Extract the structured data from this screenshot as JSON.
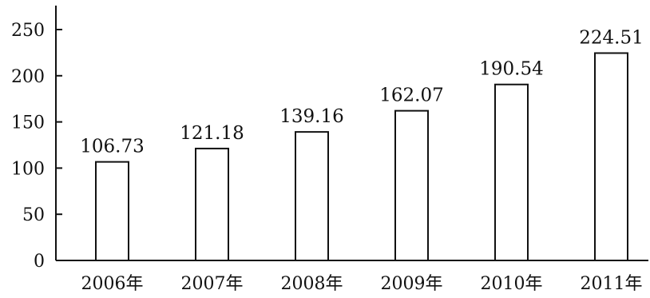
{
  "chart_data": {
    "type": "bar",
    "categories": [
      "2006年",
      "2007年",
      "2008年",
      "2009年",
      "2010年",
      "2011年"
    ],
    "values": [
      106.73,
      121.18,
      139.16,
      162.07,
      190.54,
      224.51
    ],
    "data_labels": [
      "106.73",
      "121.18",
      "139.16",
      "162.07",
      "190.54",
      "224.51"
    ],
    "y_ticks": [
      0,
      50,
      100,
      150,
      200,
      250
    ],
    "y_tick_labels": [
      "0",
      "50",
      "100",
      "150",
      "200",
      "250"
    ],
    "ylim": [
      0,
      250
    ],
    "title": "",
    "xlabel": "",
    "ylabel": "",
    "grid": false,
    "bar_fill": "#ffffff",
    "bar_stroke": "#111111",
    "axis_color": "#111111"
  }
}
